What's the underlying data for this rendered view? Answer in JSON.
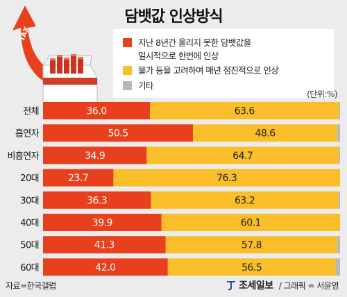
{
  "title": "담뱃값 인상방식",
  "illustration": {
    "arrow_label": "TAX"
  },
  "legend": [
    {
      "label": "지난 8년간 올리지 못한 담뱃값을\n일시적으로 한번에 인상",
      "color": "#e8401d"
    },
    {
      "label": "물가 등을 고려하여 매년 점진적으로 인상",
      "color": "#fbbe2b"
    },
    {
      "label": "기타",
      "color": "#b8b8b8"
    }
  ],
  "unit": "(단위:%)",
  "chart_data": {
    "type": "bar",
    "stacked": true,
    "orientation": "horizontal",
    "title": "담뱃값 인상방식",
    "unit": "%",
    "categories": [
      "전체",
      "흡연자",
      "비흡연자",
      "20대",
      "30대",
      "40대",
      "50대",
      "60대"
    ],
    "series": [
      {
        "name": "지난 8년간 올리지 못한 담뱃값을 일시적으로 한번에 인상",
        "color": "#e8401d",
        "values": [
          36.0,
          50.5,
          34.9,
          23.7,
          36.3,
          39.9,
          41.3,
          42.0
        ]
      },
      {
        "name": "물가 등을 고려하여 매년 점진적으로 인상",
        "color": "#fbbe2b",
        "values": [
          63.6,
          48.6,
          64.7,
          76.3,
          63.2,
          60.1,
          57.8,
          56.5
        ]
      },
      {
        "name": "기타",
        "color": "#b8b8b8",
        "values": [
          0.4,
          0.9,
          0.4,
          0.0,
          0.5,
          0.0,
          0.9,
          1.5
        ]
      }
    ],
    "value_labels": {
      "series_0": [
        "36.0",
        "50.5",
        "34.9",
        "23.7",
        "36.3",
        "39.9",
        "41.3",
        "42.0"
      ],
      "series_1": [
        "63.6",
        "48.6",
        "64.7",
        "76.3",
        "63.2",
        "60.1",
        "57.8",
        "56.5"
      ]
    }
  },
  "footer": {
    "source": "자료=한국갤럽",
    "brand": "조세일보",
    "credit": "/ 그래픽 = 서윤영"
  }
}
